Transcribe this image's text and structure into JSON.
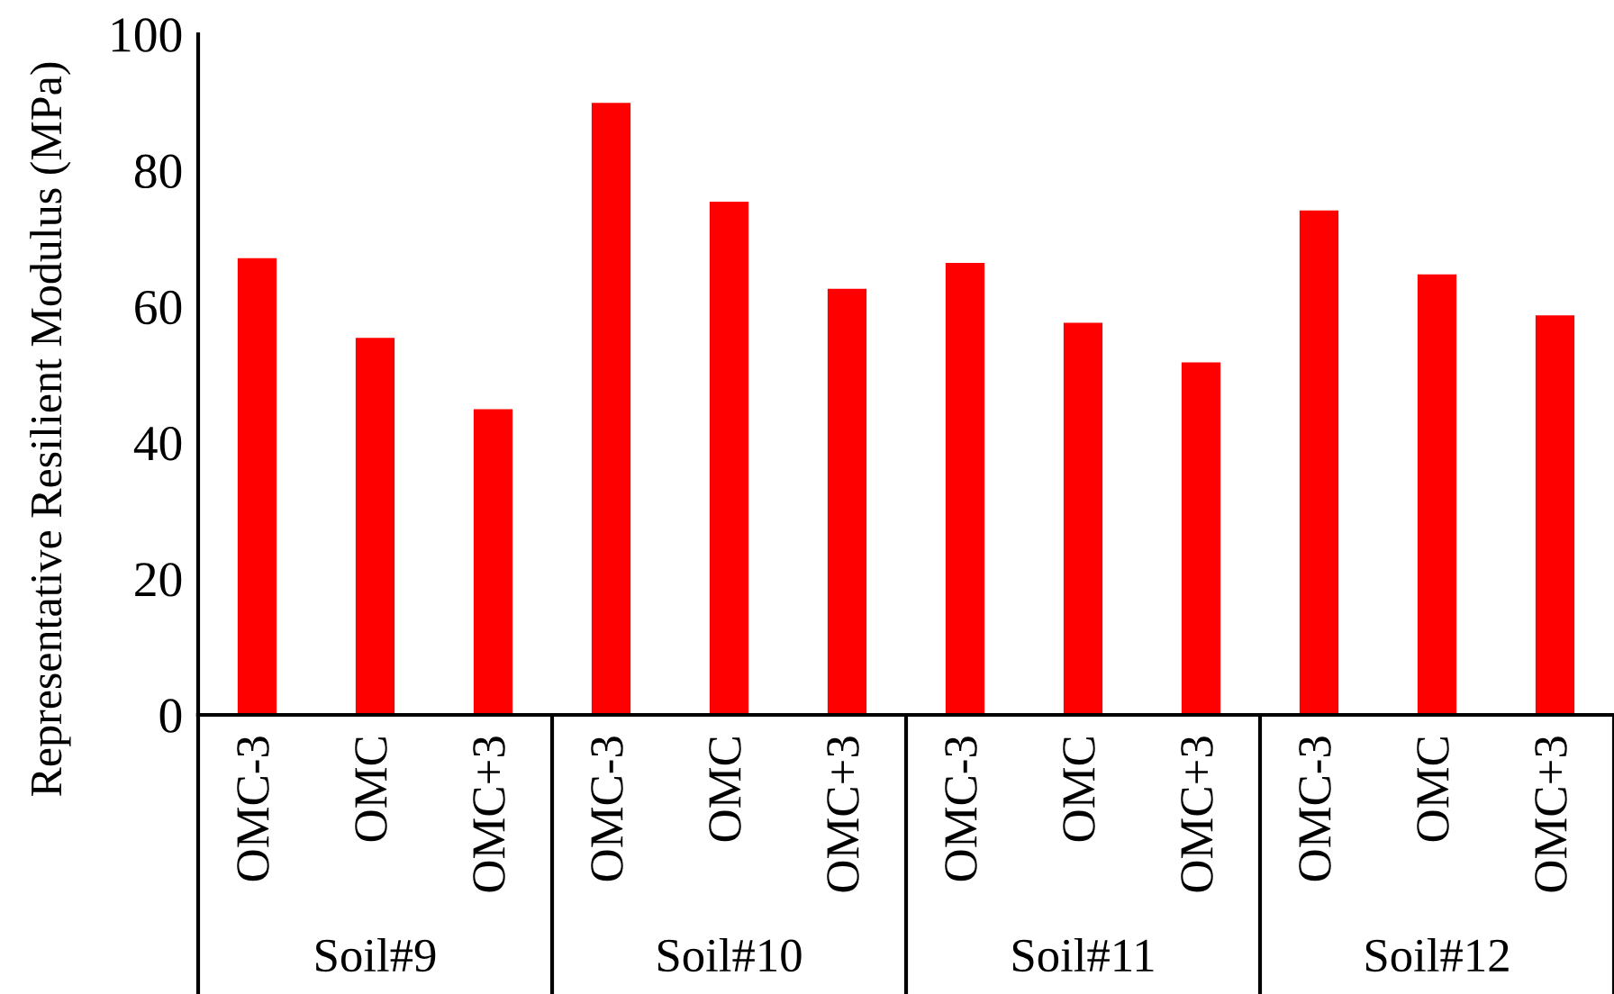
{
  "chart_data": {
    "type": "bar",
    "ylabel": "Representative Resilient Modulus (MPa)",
    "categories": [
      "OMC-3",
      "OMC",
      "OMC+3",
      "OMC-3",
      "OMC",
      "OMC+3",
      "OMC-3",
      "OMC",
      "OMC+3",
      "OMC-3",
      "OMC",
      "OMC+3"
    ],
    "values": [
      67.1,
      55.4,
      44.9,
      89.9,
      75.4,
      62.6,
      66.4,
      57.6,
      51.8,
      74.1,
      64.7,
      58.7
    ],
    "color": "#ff0000",
    "ylim": [
      0,
      100
    ],
    "yticks": [
      0,
      20,
      40,
      60,
      80,
      100
    ],
    "annotations": [
      "Soil#9",
      "Soil#10",
      "Soil#11",
      "Soil#12"
    ]
  }
}
